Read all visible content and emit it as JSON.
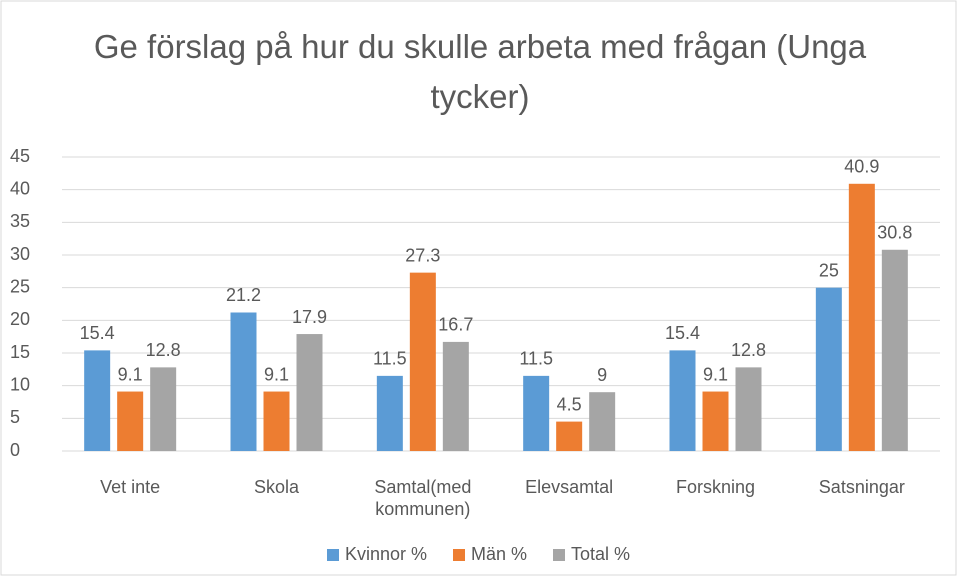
{
  "chart_data": {
    "type": "bar",
    "title": "Ge förslag på hur du skulle arbeta med frågan (Unga tycker)",
    "categories": [
      "Vet inte",
      "Skola",
      "Samtal(med kommunen)",
      "Elevsamtal",
      "Forskning",
      "Satsningar"
    ],
    "series": [
      {
        "name": "Kvinnor %",
        "color": "#5b9bd5",
        "values": [
          15.4,
          21.2,
          11.5,
          11.5,
          15.4,
          25
        ]
      },
      {
        "name": "Män %",
        "color": "#ed7d31",
        "values": [
          9.1,
          9.1,
          27.3,
          4.5,
          9.1,
          40.9
        ]
      },
      {
        "name": "Total %",
        "color": "#a5a5a5",
        "values": [
          12.8,
          17.9,
          16.7,
          9,
          12.8,
          30.8
        ]
      }
    ],
    "ylim": [
      0,
      45
    ],
    "yticks": [
      0,
      5,
      10,
      15,
      20,
      25,
      30,
      35,
      40,
      45
    ],
    "grid": true,
    "legend": "bottom"
  }
}
